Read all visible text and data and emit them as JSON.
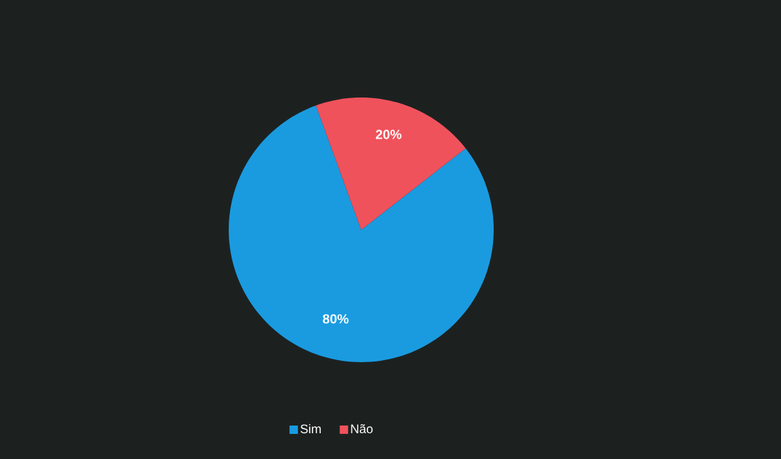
{
  "chart_data": {
    "type": "pie",
    "categories": [
      "Sim",
      "Não"
    ],
    "values": [
      80,
      20
    ],
    "colors": [
      "#1a9be0",
      "#f0525c"
    ],
    "value_labels": [
      "80%",
      "20%"
    ],
    "legend": "bottom"
  }
}
